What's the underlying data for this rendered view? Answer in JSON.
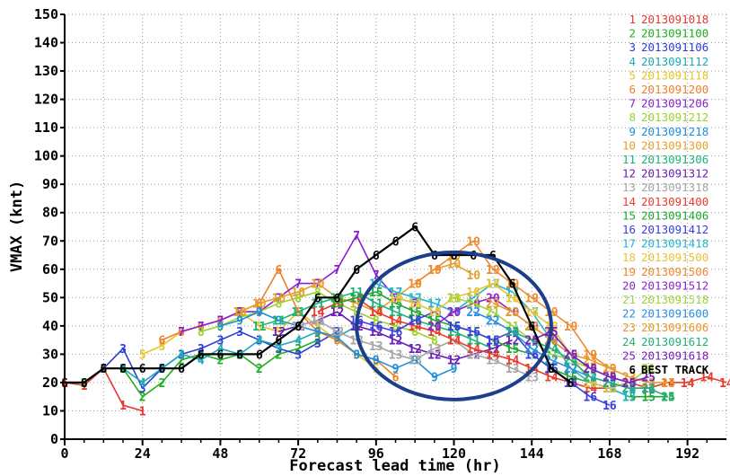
{
  "chart_data": {
    "type": "line",
    "title": "",
    "xlabel": "Forecast lead time (hr)",
    "ylabel": "VMAX (knt)",
    "xlim": [
      0,
      204
    ],
    "ylim": [
      0,
      150
    ],
    "xticks": [
      0,
      24,
      48,
      72,
      96,
      120,
      144,
      168,
      192
    ],
    "yticks": [
      0,
      10,
      20,
      30,
      40,
      50,
      60,
      70,
      80,
      90,
      100,
      110,
      120,
      130,
      140,
      150
    ],
    "grid": true,
    "legend_position": "right",
    "legend": [
      {
        "id": "1",
        "label": "2013091018",
        "color": "#e53935"
      },
      {
        "id": "2",
        "label": "2013091100",
        "color": "#1fb01f"
      },
      {
        "id": "3",
        "label": "2013091106",
        "color": "#2b3fd6"
      },
      {
        "id": "4",
        "label": "2013091112",
        "color": "#1fa7b8"
      },
      {
        "id": "5",
        "label": "2013091118",
        "color": "#e3c52b"
      },
      {
        "id": "6",
        "label": "2013091200",
        "color": "#ef7f2a"
      },
      {
        "id": "7",
        "label": "2013091206",
        "color": "#8a1fd1"
      },
      {
        "id": "8",
        "label": "2013091212",
        "color": "#9ad12c"
      },
      {
        "id": "9",
        "label": "2013091218",
        "color": "#1c8fdb"
      },
      {
        "id": "10",
        "label": "2013091300",
        "color": "#e3a12b"
      },
      {
        "id": "11",
        "label": "2013091306",
        "color": "#1bb57a"
      },
      {
        "id": "12",
        "label": "2013091312",
        "color": "#6a1fb5"
      },
      {
        "id": "13",
        "label": "2013091318",
        "color": "#a6a6a6"
      },
      {
        "id": "14",
        "label": "2013091400",
        "color": "#ea3b2b"
      },
      {
        "id": "15",
        "label": "2013091406",
        "color": "#21a532"
      },
      {
        "id": "16",
        "label": "2013091412",
        "color": "#3a3fe0"
      },
      {
        "id": "17",
        "label": "2013091418",
        "color": "#24b4cc"
      },
      {
        "id": "18",
        "label": "2013091500",
        "color": "#e6c43a"
      },
      {
        "id": "19",
        "label": "2013091506",
        "color": "#f08a30"
      },
      {
        "id": "20",
        "label": "2013091512",
        "color": "#8e24c8"
      },
      {
        "id": "21",
        "label": "2013091518",
        "color": "#a3d43a"
      },
      {
        "id": "22",
        "label": "2013091600",
        "color": "#2a8fe3"
      },
      {
        "id": "23",
        "label": "2013091606",
        "color": "#e89a2a"
      },
      {
        "id": "24",
        "label": "2013091612",
        "color": "#20b07a"
      },
      {
        "id": "25",
        "label": "2013091618",
        "color": "#7a1fc0"
      },
      {
        "id": "6",
        "label": "BEST TRACK",
        "color": "#000000"
      }
    ],
    "series": [
      {
        "id": "BT",
        "marker": "6",
        "color": "#000000",
        "best_track": true,
        "x": [
          0,
          6,
          12,
          18,
          24,
          30,
          36,
          42,
          48,
          54,
          60,
          66,
          72,
          78,
          84,
          90,
          96,
          102,
          108,
          114,
          120,
          126,
          132,
          138,
          144,
          150,
          156
        ],
        "y": [
          20,
          20,
          25,
          25,
          25,
          25,
          25,
          30,
          30,
          30,
          30,
          35,
          40,
          50,
          50,
          60,
          65,
          70,
          75,
          65,
          65,
          65,
          65,
          55,
          40,
          25,
          20
        ]
      },
      {
        "id": "1",
        "marker": "1",
        "color": "#e53935",
        "x": [
          0,
          6,
          12,
          18,
          24
        ],
        "y": [
          20,
          19,
          25,
          12,
          10
        ]
      },
      {
        "id": "2",
        "marker": "2",
        "color": "#1fb01f",
        "x": [
          6,
          12,
          18,
          24,
          30,
          36,
          42,
          48,
          54,
          60,
          66,
          72,
          78
        ],
        "y": [
          20,
          25,
          25,
          15,
          20,
          28,
          30,
          28,
          30,
          25,
          30,
          32,
          35
        ]
      },
      {
        "id": "3",
        "marker": "3",
        "color": "#2b3fd6",
        "x": [
          12,
          18,
          24,
          30,
          36,
          42,
          48,
          54,
          60,
          66,
          72,
          78,
          84
        ],
        "y": [
          25,
          32,
          18,
          25,
          30,
          32,
          35,
          38,
          35,
          32,
          30,
          34,
          38
        ]
      },
      {
        "id": "4",
        "marker": "4",
        "color": "#1fa7b8",
        "x": [
          18,
          24,
          30,
          36,
          42,
          48,
          54,
          60,
          66,
          72,
          78,
          84,
          90
        ],
        "y": [
          25,
          20,
          25,
          30,
          28,
          32,
          30,
          35,
          33,
          35,
          38,
          36,
          40
        ]
      },
      {
        "id": "5",
        "marker": "5",
        "color": "#e3c52b",
        "x": [
          24,
          30,
          36,
          42,
          48,
          54,
          60,
          66,
          72,
          78,
          84,
          90,
          96
        ],
        "y": [
          30,
          33,
          38,
          40,
          42,
          45,
          40,
          38,
          45,
          40,
          35,
          30,
          25
        ]
      },
      {
        "id": "6",
        "marker": "6",
        "color": "#ef7f2a",
        "x": [
          30,
          36,
          42,
          48,
          54,
          60,
          66,
          72,
          78,
          84,
          90,
          96,
          102
        ],
        "y": [
          35,
          38,
          40,
          42,
          45,
          48,
          60,
          45,
          38,
          35,
          30,
          28,
          22
        ]
      },
      {
        "id": "7",
        "marker": "7",
        "color": "#8a1fd1",
        "x": [
          36,
          42,
          48,
          54,
          60,
          66,
          72,
          78,
          84,
          90,
          96,
          102,
          108
        ],
        "y": [
          38,
          40,
          42,
          45,
          45,
          50,
          55,
          55,
          60,
          72,
          58,
          50,
          48
        ]
      },
      {
        "id": "8",
        "marker": "8",
        "color": "#9ad12c",
        "x": [
          42,
          48,
          54,
          60,
          66,
          72,
          78,
          84,
          90,
          96,
          102,
          108,
          114
        ],
        "y": [
          38,
          40,
          43,
          45,
          48,
          50,
          52,
          48,
          45,
          42,
          40,
          38,
          35
        ]
      },
      {
        "id": "9",
        "marker": "9",
        "color": "#1c8fdb",
        "x": [
          48,
          54,
          60,
          66,
          72,
          78,
          84,
          90,
          96,
          102,
          108,
          114,
          120
        ],
        "y": [
          40,
          42,
          45,
          42,
          40,
          38,
          36,
          30,
          28,
          25,
          28,
          22,
          25
        ]
      },
      {
        "id": "10",
        "marker": "10",
        "color": "#e3a12b",
        "x": [
          54,
          60,
          66,
          72,
          78,
          84,
          90,
          96,
          102,
          108,
          114,
          120,
          126
        ],
        "y": [
          45,
          48,
          50,
          52,
          55,
          50,
          48,
          45,
          50,
          55,
          60,
          62,
          58
        ]
      },
      {
        "id": "11",
        "marker": "11",
        "color": "#1bb57a",
        "x": [
          60,
          66,
          72,
          78,
          84,
          90,
          96,
          102,
          108,
          114,
          120,
          126,
          132
        ],
        "y": [
          40,
          42,
          45,
          48,
          50,
          52,
          48,
          45,
          42,
          40,
          38,
          35,
          32
        ]
      },
      {
        "id": "12",
        "marker": "12",
        "color": "#6a1fb5",
        "x": [
          66,
          72,
          78,
          84,
          90,
          96,
          102,
          108,
          114,
          120,
          126,
          132,
          138
        ],
        "y": [
          38,
          40,
          42,
          45,
          40,
          38,
          35,
          32,
          30,
          28,
          30,
          32,
          35
        ]
      },
      {
        "id": "13",
        "marker": "13",
        "color": "#a6a6a6",
        "x": [
          72,
          78,
          84,
          90,
          96,
          102,
          108,
          114,
          120,
          126,
          132,
          138,
          144
        ],
        "y": [
          40,
          42,
          38,
          35,
          33,
          30,
          28,
          32,
          35,
          30,
          28,
          25,
          22
        ]
      },
      {
        "id": "14",
        "marker": "14",
        "color": "#ea3b2b",
        "x": [
          78,
          84,
          90,
          96,
          102,
          108,
          114,
          120,
          126,
          132,
          138,
          144,
          150,
          156,
          162,
          168,
          174,
          180,
          186,
          192,
          198,
          204
        ],
        "y": [
          45,
          48,
          50,
          45,
          42,
          40,
          38,
          35,
          32,
          30,
          28,
          25,
          22,
          20,
          18,
          18,
          20,
          18,
          20,
          20,
          22,
          20
        ]
      },
      {
        "id": "15",
        "marker": "15",
        "color": "#21a532",
        "x": [
          84,
          90,
          96,
          102,
          108,
          114,
          120,
          126,
          132,
          138,
          144,
          150,
          156,
          162,
          168,
          174,
          180,
          186
        ],
        "y": [
          48,
          50,
          52,
          48,
          45,
          42,
          40,
          38,
          35,
          32,
          30,
          25,
          22,
          20,
          18,
          15,
          15,
          15
        ]
      },
      {
        "id": "16",
        "marker": "16",
        "color": "#3a3fe0",
        "x": [
          90,
          96,
          102,
          108,
          114,
          120,
          126,
          132,
          138,
          144,
          150,
          156,
          162,
          168
        ],
        "y": [
          42,
          40,
          38,
          42,
          45,
          40,
          38,
          35,
          38,
          30,
          25,
          20,
          15,
          12
        ]
      },
      {
        "id": "17",
        "marker": "17",
        "color": "#24b4cc",
        "x": [
          96,
          102,
          108,
          114,
          120,
          126,
          132,
          138,
          144,
          150,
          156,
          162,
          168,
          174
        ],
        "y": [
          55,
          52,
          50,
          48,
          45,
          50,
          55,
          52,
          45,
          35,
          25,
          20,
          18,
          15
        ]
      },
      {
        "id": "18",
        "marker": "18",
        "color": "#e6c43a",
        "x": [
          102,
          108,
          114,
          120,
          126,
          132,
          138,
          144,
          150,
          156,
          162,
          168,
          174
        ],
        "y": [
          50,
          48,
          45,
          50,
          52,
          55,
          50,
          45,
          40,
          30,
          20,
          18,
          20
        ]
      },
      {
        "id": "19",
        "marker": "19",
        "color": "#f08a30",
        "x": [
          108,
          114,
          120,
          126,
          132,
          138,
          144,
          150,
          156,
          162,
          168
        ],
        "y": [
          55,
          60,
          65,
          70,
          60,
          55,
          50,
          45,
          40,
          30,
          25
        ]
      },
      {
        "id": "20",
        "marker": "20",
        "color": "#8e24c8",
        "x": [
          114,
          120,
          126,
          132,
          138,
          144,
          150,
          156,
          162,
          168,
          174
        ],
        "y": [
          40,
          45,
          48,
          50,
          45,
          40,
          35,
          30,
          25,
          22,
          20
        ]
      },
      {
        "id": "21",
        "marker": "21",
        "color": "#a3d43a",
        "x": [
          120,
          126,
          132,
          138,
          144,
          150,
          156,
          162,
          168,
          174,
          180
        ],
        "y": [
          50,
          48,
          45,
          40,
          35,
          30,
          28,
          25,
          22,
          20,
          25
        ]
      },
      {
        "id": "22",
        "marker": "22",
        "color": "#2a8fe3",
        "x": [
          126,
          132,
          138,
          144,
          150,
          156,
          162,
          168,
          174,
          180
        ],
        "y": [
          45,
          42,
          38,
          32,
          28,
          25,
          22,
          20,
          18,
          18
        ]
      },
      {
        "id": "23",
        "marker": "23",
        "color": "#e89a2a",
        "x": [
          132,
          138,
          144,
          150,
          156,
          162,
          168,
          174,
          180,
          186
        ],
        "y": [
          48,
          45,
          40,
          35,
          30,
          28,
          25,
          22,
          20,
          20
        ]
      },
      {
        "id": "24",
        "marker": "24",
        "color": "#20b07a",
        "x": [
          138,
          144,
          150,
          156,
          162,
          168,
          174,
          180,
          186
        ],
        "y": [
          38,
          35,
          32,
          28,
          22,
          20,
          18,
          18,
          15
        ]
      },
      {
        "id": "25",
        "marker": "25",
        "color": "#7a1fc0",
        "x": [
          144,
          150,
          156,
          162,
          168,
          174,
          180
        ],
        "y": [
          35,
          38,
          30,
          25,
          22,
          20,
          22
        ]
      }
    ],
    "annotations": [
      {
        "type": "ellipse",
        "color": "#1b3f8b",
        "x_center": 120,
        "y_center": 40,
        "x_radius": 30,
        "y_radius": 26
      }
    ]
  }
}
